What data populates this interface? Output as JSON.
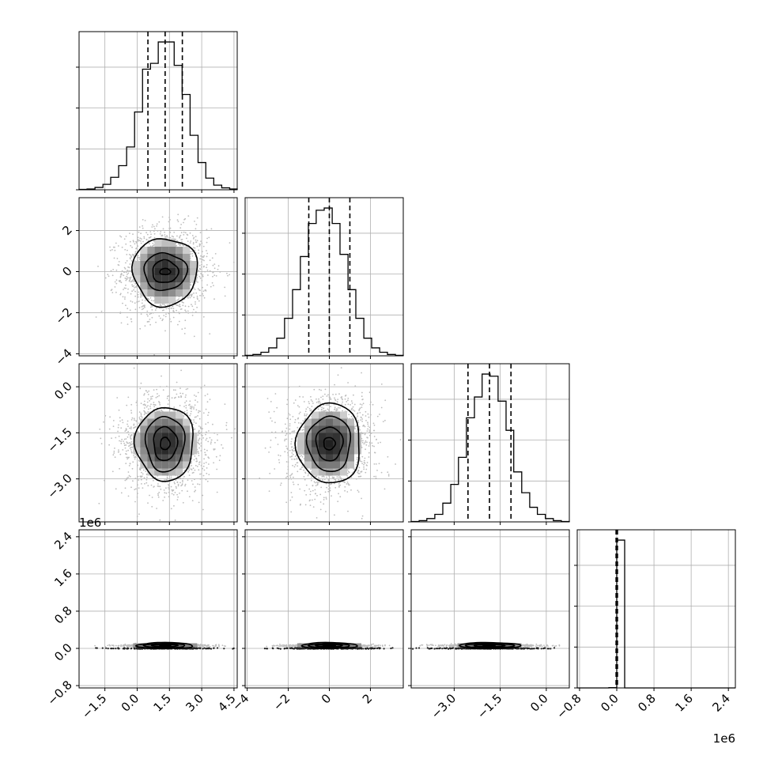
{
  "chart_data": {
    "type": "corner",
    "grid": true,
    "colors": {
      "line": "#000000",
      "grid": "#b0b0b0",
      "scatter": "#bdbdbd"
    },
    "parameters": [
      {
        "range": [
          -2.7,
          4.65
        ],
        "mean": 1.3,
        "sigma": 0.95,
        "quantiles": [
          0.5,
          1.3,
          2.1
        ]
      },
      {
        "range": [
          -4.1,
          3.6
        ],
        "mean": 0.0,
        "sigma": 1.0,
        "quantiles": [
          -1.0,
          0.0,
          1.0
        ]
      },
      {
        "range": [
          -4.4,
          0.75
        ],
        "mean": -1.85,
        "sigma": 0.72,
        "quantiles": [
          -2.55,
          -1.85,
          -1.15
        ]
      },
      {
        "range": [
          -0.85,
          2.55
        ],
        "unit": "1e6",
        "quantiles": [
          -0.015,
          0.0,
          0.015
        ]
      }
    ],
    "histograms": [
      {
        "param": 0,
        "bins": [
          -2.7,
          -2.33,
          -1.96,
          -1.59,
          -1.23,
          -0.86,
          -0.49,
          -0.12,
          0.25,
          0.62,
          0.98,
          1.35,
          1.72,
          2.09,
          2.46,
          2.83,
          3.19,
          3.56,
          3.93,
          4.3,
          4.65
        ],
        "counts": [
          1,
          2,
          6,
          14,
          32,
          62,
          110,
          200,
          310,
          325,
          380,
          380,
          320,
          245,
          140,
          70,
          30,
          12,
          5,
          2
        ]
      },
      {
        "param": 1,
        "bins": [
          -4.1,
          -3.72,
          -3.33,
          -2.95,
          -2.56,
          -2.18,
          -1.79,
          -1.41,
          -1.02,
          -0.64,
          -0.25,
          0.14,
          0.52,
          0.91,
          1.29,
          1.68,
          2.06,
          2.45,
          2.83,
          3.22,
          3.6
        ],
        "counts": [
          1,
          3,
          8,
          18,
          40,
          85,
          150,
          225,
          300,
          330,
          335,
          300,
          230,
          150,
          85,
          40,
          18,
          8,
          3,
          1
        ]
      },
      {
        "param": 2,
        "bins": [
          -4.4,
          -4.14,
          -3.89,
          -3.63,
          -3.37,
          -3.11,
          -2.86,
          -2.6,
          -2.34,
          -2.09,
          -1.83,
          -1.57,
          -1.31,
          -1.06,
          -0.8,
          -0.54,
          -0.29,
          -0.03,
          0.23,
          0.49,
          0.75
        ],
        "counts": [
          1,
          3,
          8,
          18,
          45,
          90,
          155,
          250,
          300,
          355,
          350,
          290,
          220,
          120,
          70,
          35,
          18,
          8,
          3,
          1
        ]
      },
      {
        "param": 3,
        "bins": [
          -0.85,
          -0.68,
          -0.51,
          -0.34,
          -0.17,
          0.0,
          0.17,
          0.34,
          0.51,
          0.68,
          0.85,
          1.02,
          1.19,
          1.36,
          1.53,
          1.7,
          1.87,
          2.04,
          2.21,
          2.38,
          2.55
        ],
        "counts": [
          0,
          0,
          0,
          0,
          2,
          1290,
          0,
          0,
          0,
          0,
          0,
          0,
          0,
          0,
          0,
          0,
          0,
          0,
          0,
          0
        ]
      }
    ],
    "axes": {
      "x": [
        {
          "param": 0,
          "ticks": [
            -1.5,
            0.0,
            1.5,
            3.0,
            4.5
          ],
          "tick_labels": [
            "−1.5",
            "0.0",
            "1.5",
            "3.0",
            "4.5"
          ]
        },
        {
          "param": 1,
          "ticks": [
            -4,
            -2,
            0,
            2
          ],
          "tick_labels": [
            "−4",
            "−2",
            "0",
            "2"
          ]
        },
        {
          "param": 2,
          "ticks": [
            -3.0,
            -1.5,
            0.0
          ],
          "tick_labels": [
            "−3.0",
            "−1.5",
            "0.0"
          ]
        },
        {
          "param": 3,
          "ticks": [
            -0.8,
            0.0,
            0.8,
            1.6,
            2.4
          ],
          "tick_labels": [
            "−0.8",
            "0.0",
            "0.8",
            "1.6",
            "2.4"
          ],
          "offset_label": "1e6"
        }
      ],
      "y": [
        {
          "param": 1,
          "ticks": [
            -4,
            -2,
            0,
            2
          ],
          "tick_labels": [
            "−4",
            "−2",
            "0",
            "2"
          ]
        },
        {
          "param": 2,
          "ticks": [
            -3.0,
            -1.5,
            0.0
          ],
          "tick_labels": [
            "−3.0",
            "−1.5",
            "0.0"
          ]
        },
        {
          "param": 3,
          "ticks": [
            -0.8,
            0.0,
            0.8,
            1.6,
            2.4
          ],
          "tick_labels": [
            "−0.8",
            "0.0",
            "0.8",
            "1.6",
            "2.4"
          ],
          "offset_label": "1e6"
        }
      ]
    },
    "panels_2d": [
      {
        "x_param": 0,
        "y_param": 1,
        "contour_widths": [
          0.25,
          0.6,
          1.0,
          1.5
        ],
        "contour_heights": [
          0.15,
          0.55,
          0.9,
          1.65
        ]
      },
      {
        "x_param": 0,
        "y_param": 2,
        "contour_widths": [
          0.22,
          0.55,
          0.9,
          1.35
        ],
        "contour_heights": [
          0.2,
          0.55,
          0.9,
          1.2
        ]
      },
      {
        "x_param": 1,
        "y_param": 2,
        "contour_widths": [
          0.28,
          0.65,
          1.05,
          1.55
        ],
        "contour_heights": [
          0.2,
          0.55,
          0.9,
          1.3
        ]
      },
      {
        "x_param": 0,
        "y_param": 3,
        "contour_widths": [
          0.25,
          0.6,
          0.95,
          1.3
        ],
        "contour_heights": [
          0.01,
          0.025,
          0.045,
          0.065
        ]
      },
      {
        "x_param": 1,
        "y_param": 3,
        "contour_widths": [
          0.3,
          0.65,
          1.0,
          1.35
        ],
        "contour_heights": [
          0.01,
          0.025,
          0.045,
          0.065
        ]
      },
      {
        "x_param": 2,
        "y_param": 3,
        "contour_widths": [
          0.2,
          0.5,
          0.8,
          1.0
        ],
        "contour_heights": [
          0.01,
          0.025,
          0.045,
          0.065
        ]
      }
    ]
  }
}
